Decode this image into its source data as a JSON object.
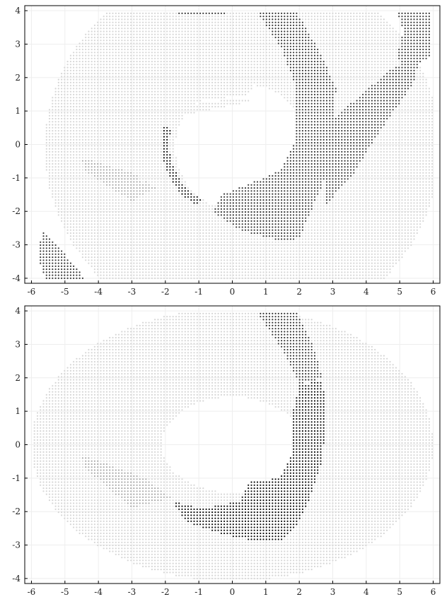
{
  "chart_data": [
    {
      "type": "scatter",
      "title": "",
      "xlabel": "",
      "ylabel": "",
      "xlim": [
        -6.2,
        6.2
      ],
      "ylim": [
        -4.15,
        4.15
      ],
      "x_ticks": [
        "-6",
        "-5",
        "-4",
        "-3",
        "-2",
        "-1",
        "0",
        "1",
        "2",
        "3",
        "4",
        "5",
        "6"
      ],
      "y_ticks": [
        "-4",
        "-3",
        "-2",
        "-1",
        "0",
        "1",
        "2",
        "3",
        "4"
      ],
      "grid": true,
      "legend": "none",
      "colors": {
        "light": "#d6d6d6",
        "mid": "#a9a9a9",
        "dark": "#3c3c3c",
        "black": "#111111"
      },
      "regions": [
        {
          "name": "outer annulus",
          "tone": "light",
          "shape": "annulus",
          "center": [
            0.3,
            -0.1
          ],
          "r_outer": 5.9,
          "r_inner": 2.0,
          "sy": 0.95
        },
        {
          "name": "upper light wedge",
          "tone": "light",
          "shape": "polygon",
          "points": [
            [
              -2.8,
              0.7
            ],
            [
              -1.7,
              1.2
            ],
            [
              0.5,
              1.5
            ],
            [
              0.8,
              2.0
            ],
            [
              -0.5,
              2.3
            ],
            [
              -2.5,
              1.5
            ]
          ]
        },
        {
          "name": "grey wedge",
          "tone": "mid",
          "shape": "polygon",
          "points": [
            [
              -4.5,
              -0.4
            ],
            [
              -2.8,
              -0.9
            ],
            [
              -2.3,
              -1.3
            ],
            [
              -3.0,
              -1.7
            ],
            [
              -4.4,
              -0.8
            ]
          ]
        },
        {
          "name": "inner light band",
          "tone": "light",
          "shape": "polygon",
          "points": [
            [
              -2.9,
              0.8
            ],
            [
              -2.1,
              1.1
            ],
            [
              -1.1,
              1.2
            ],
            [
              0.2,
              1.4
            ],
            [
              0.6,
              1.3
            ],
            [
              -0.3,
              1.1
            ],
            [
              -1.9,
              0.8
            ],
            [
              -2.2,
              -0.8
            ],
            [
              -2.7,
              -1.2
            ],
            [
              -3.0,
              -0.4
            ]
          ]
        },
        {
          "name": "dark curved band",
          "tone": "dark",
          "shape": "polygon",
          "points": [
            [
              0.7,
              4.0
            ],
            [
              1.9,
              4.0
            ],
            [
              2.6,
              2.8
            ],
            [
              3.1,
              1.7
            ],
            [
              3.0,
              0.2
            ],
            [
              2.7,
              -1.2
            ],
            [
              2.0,
              -2.8
            ],
            [
              1.5,
              -2.9
            ],
            [
              0.3,
              -2.6
            ],
            [
              -0.6,
              -2.0
            ],
            [
              -0.3,
              -1.5
            ],
            [
              0.7,
              -1.1
            ],
            [
              1.5,
              -0.7
            ],
            [
              1.9,
              0.2
            ],
            [
              1.9,
              1.7
            ],
            [
              1.5,
              2.8
            ]
          ]
        },
        {
          "name": "dark right band",
          "tone": "dark",
          "shape": "polygon",
          "points": [
            [
              2.8,
              0.5
            ],
            [
              3.5,
              1.2
            ],
            [
              4.8,
              2.3
            ],
            [
              5.6,
              2.6
            ],
            [
              5.4,
              1.8
            ],
            [
              4.4,
              0.4
            ],
            [
              3.6,
              -0.9
            ],
            [
              2.8,
              -1.8
            ]
          ]
        },
        {
          "name": "dark top right patch",
          "tone": "dark",
          "shape": "polygon",
          "points": [
            [
              4.9,
              4.0
            ],
            [
              5.9,
              4.0
            ],
            [
              5.9,
              2.6
            ],
            [
              5.2,
              2.2
            ],
            [
              4.9,
              2.6
            ],
            [
              5.1,
              3.4
            ]
          ]
        },
        {
          "name": "dark lower left strip",
          "tone": "dark",
          "shape": "polygon",
          "points": [
            [
              -5.7,
              -2.6
            ],
            [
              -5.4,
              -2.8
            ],
            [
              -4.4,
              -4.0
            ],
            [
              -5.6,
              -4.0
            ],
            [
              -5.8,
              -3.4
            ]
          ]
        },
        {
          "name": "dark top dash",
          "tone": "dark",
          "shape": "polygon",
          "points": [
            [
              -1.6,
              4.0
            ],
            [
              -0.2,
              4.0
            ],
            [
              -0.2,
              3.9
            ],
            [
              -1.6,
              3.9
            ]
          ]
        },
        {
          "name": "black inner rim",
          "tone": "black",
          "shape": "arc",
          "center": [
            0.0,
            0.0
          ],
          "radius": 2.0,
          "angle_start": 165,
          "angle_end": 240,
          "width": 0.12
        }
      ]
    },
    {
      "type": "scatter",
      "title": "",
      "xlabel": "",
      "ylabel": "",
      "xlim": [
        -6.2,
        6.2
      ],
      "ylim": [
        -4.15,
        4.15
      ],
      "x_ticks": [
        "-6",
        "-5",
        "-4",
        "-3",
        "-2",
        "-1",
        "0",
        "1",
        "2",
        "3",
        "4",
        "5",
        "6"
      ],
      "y_ticks": [
        "-4",
        "-3",
        "-2",
        "-1",
        "0",
        "1",
        "2",
        "3",
        "4"
      ],
      "grid": true,
      "legend": "none",
      "colors": {
        "light": "#d6d6d6",
        "mid": "#a9a9a9",
        "dark": "#3c3c3c",
        "black": "#111111"
      },
      "regions": [
        {
          "name": "outer annulus",
          "tone": "light",
          "shape": "annulus",
          "center": [
            0.0,
            0.0
          ],
          "r_outer": 6.0,
          "r_inner": 2.1,
          "sy": 0.68
        },
        {
          "name": "grey wedge",
          "tone": "mid",
          "shape": "polygon",
          "points": [
            [
              -4.5,
              -0.3
            ],
            [
              -2.6,
              -1.0
            ],
            [
              -1.8,
              -1.6
            ],
            [
              -3.0,
              -1.9
            ],
            [
              -4.4,
              -0.7
            ]
          ]
        },
        {
          "name": "light side lobe",
          "tone": "light",
          "shape": "polygon",
          "points": [
            [
              2.8,
              1.5
            ],
            [
              4.3,
              1.2
            ],
            [
              4.9,
              0.5
            ],
            [
              4.9,
              -0.6
            ],
            [
              3.9,
              -1.6
            ],
            [
              3.0,
              -2.3
            ],
            [
              2.3,
              -2.9
            ],
            [
              2.8,
              -1.0
            ]
          ]
        },
        {
          "name": "dark vertical band",
          "tone": "dark",
          "shape": "polygon",
          "points": [
            [
              0.7,
              4.0
            ],
            [
              1.9,
              4.0
            ],
            [
              2.4,
              3.0
            ],
            [
              2.7,
              2.0
            ],
            [
              2.0,
              1.8
            ],
            [
              1.5,
              2.8
            ]
          ]
        },
        {
          "name": "black lower crescent",
          "tone": "black",
          "shape": "polygon",
          "points": [
            [
              2.0,
              1.8
            ],
            [
              2.7,
              1.9
            ],
            [
              2.8,
              1.0
            ],
            [
              2.7,
              -0.4
            ],
            [
              2.4,
              -1.4
            ],
            [
              2.0,
              -2.3
            ],
            [
              1.5,
              -2.9
            ],
            [
              0.8,
              -2.9
            ],
            [
              -0.2,
              -2.7
            ],
            [
              -1.4,
              -2.3
            ],
            [
              -1.8,
              -1.7
            ],
            [
              -0.9,
              -1.9
            ],
            [
              0.2,
              -1.7
            ],
            [
              0.5,
              -1.1
            ],
            [
              1.4,
              -1.0
            ],
            [
              1.8,
              -0.2
            ],
            [
              1.8,
              1.0
            ]
          ]
        }
      ]
    }
  ]
}
